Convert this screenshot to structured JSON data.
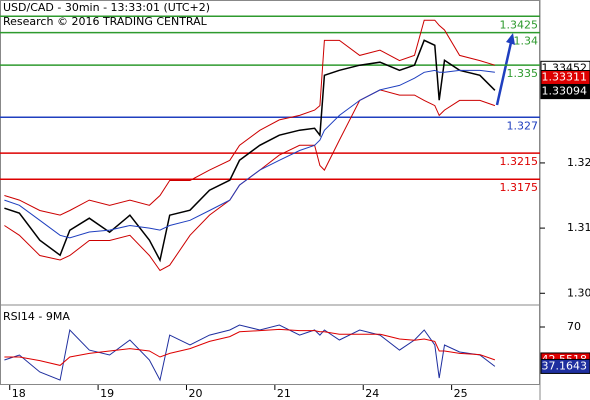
{
  "chart_data": [
    {
      "type": "line",
      "title": "USD/CAD - 30min - 13:33:01 (UTC+2)",
      "subtitle": "Research © 2016 TRADING CENTRAL",
      "x": [
        -0.06,
        0.11,
        0.34,
        0.57,
        0.68,
        0.9,
        1.13,
        1.36,
        1.58,
        1.7,
        1.81,
        2.04,
        2.26,
        2.49,
        2.6,
        2.83,
        3.05,
        3.28,
        3.45,
        3.51,
        3.56,
        3.73,
        3.96,
        4.19,
        4.41,
        4.58,
        4.69,
        4.81,
        4.86,
        4.92,
        5.09,
        5.32,
        5.49
      ],
      "xlim": [
        -0.11,
        6.0
      ],
      "xticks": [
        {
          "value": 0,
          "label": "18"
        },
        {
          "value": 1,
          "label": "19"
        },
        {
          "value": 2,
          "label": "20"
        },
        {
          "value": 3,
          "label": "21"
        },
        {
          "value": 4,
          "label": "24"
        },
        {
          "value": 5,
          "label": "25"
        }
      ],
      "ylim": [
        1.2982,
        1.345
      ],
      "yticks": [
        {
          "value": 1.3,
          "label": "1.30"
        },
        1.31,
        1.32
      ],
      "series": [
        {
          "color": "#000000",
          "values": [
            1.31305,
            1.31229,
            1.30814,
            1.30584,
            1.30968,
            1.31152,
            1.30937,
            1.31198,
            1.30814,
            1.30508,
            1.31198,
            1.31275,
            1.31581,
            1.31735,
            1.32041,
            1.32271,
            1.32425,
            1.32502,
            1.32532,
            1.32425,
            1.33345,
            1.33422,
            1.33499,
            1.33545,
            1.33422,
            1.33499,
            1.33882,
            1.33805,
            1.32962,
            1.33575,
            1.33422,
            1.33345,
            1.33115
          ]
        },
        {
          "color": "#cc0000",
          "values": [
            1.315,
            1.3143,
            1.3127,
            1.312,
            1.3127,
            1.3143,
            1.3135,
            1.3143,
            1.3135,
            1.315,
            1.3173,
            1.3173,
            1.3189,
            1.3204,
            1.3227,
            1.325,
            1.3266,
            1.3273,
            1.3281,
            1.3288,
            1.3388,
            1.3388,
            1.3365,
            1.3373,
            1.3357,
            1.3365,
            1.3419,
            1.3419,
            1.3411,
            1.3404,
            1.3365,
            1.3357,
            1.335
          ]
        },
        {
          "color": "#cc0000",
          "values": [
            1.3104,
            1.3089,
            1.3058,
            1.3051,
            1.3058,
            1.3081,
            1.3081,
            1.3089,
            1.3058,
            1.3035,
            1.3043,
            1.3089,
            1.312,
            1.3143,
            1.3166,
            1.3189,
            1.3212,
            1.3227,
            1.3227,
            1.3196,
            1.3189,
            1.3235,
            1.3296,
            1.3312,
            1.3304,
            1.3304,
            1.3296,
            1.3288,
            1.3273,
            1.3281,
            1.3296,
            1.3296,
            1.3288
          ]
        },
        {
          "color": "#1f3fbf",
          "values": [
            1.3143,
            1.3135,
            1.3112,
            1.3089,
            1.3085,
            1.3094,
            1.3097,
            1.3104,
            1.31,
            1.3097,
            1.3104,
            1.3112,
            1.3127,
            1.3143,
            1.3166,
            1.3189,
            1.3204,
            1.3219,
            1.3227,
            1.3235,
            1.325,
            1.3273,
            1.3296,
            1.3312,
            1.3319,
            1.333,
            1.3339,
            1.3342,
            1.3339,
            1.3339,
            1.3342,
            1.3342,
            1.3339
          ]
        }
      ],
      "levels": [
        {
          "value": 1.3425,
          "color": "#2e9a2e"
        },
        {
          "value": 1.34,
          "color": "#2e9a2e"
        },
        {
          "value": 1.335,
          "color": "#2e9a2e"
        },
        {
          "value": 1.327,
          "color": "#1f3fbf"
        },
        {
          "value": 1.3215,
          "color": "#dd0000"
        },
        {
          "value": 1.3175,
          "color": "#dd0000"
        }
      ],
      "markers": [
        {
          "value": 1.33452,
          "color": "#ffffff"
        },
        {
          "value": 1.33311,
          "color": "#dd0000"
        },
        {
          "value": 1.33094,
          "color": "#000000"
        }
      ]
    },
    {
      "type": "line",
      "title": "RSI14 - 9MA",
      "ylim": [
        21.7,
        82.5
      ],
      "yticks": [
        70
      ],
      "series": [
        {
          "color": "#1f2f9f",
          "values": [
            42.5,
            46.7,
            32.5,
            25.8,
            67.5,
            50.8,
            46.7,
            59.2,
            42.5,
            25.8,
            63.3,
            55,
            63.3,
            67.5,
            71.7,
            67.5,
            71.7,
            63.3,
            67.5,
            63.3,
            67.5,
            59.2,
            67.5,
            63.3,
            50.8,
            59.2,
            67.5,
            55,
            27.5,
            55,
            49.2,
            46.7,
            37.2
          ]
        },
        {
          "color": "#dd0000",
          "values": [
            45,
            45,
            42,
            38,
            45,
            48,
            50,
            52,
            50,
            45,
            48,
            52,
            58,
            62,
            66,
            67,
            68,
            67,
            67,
            66,
            66,
            64,
            64,
            64,
            60,
            59,
            60,
            58,
            50,
            50,
            48,
            47,
            42.6
          ]
        }
      ],
      "markers": [
        {
          "value": 42.5518,
          "color": "#dd0000"
        },
        {
          "value": 37.1643,
          "color": "#1f2f9f"
        }
      ]
    }
  ]
}
